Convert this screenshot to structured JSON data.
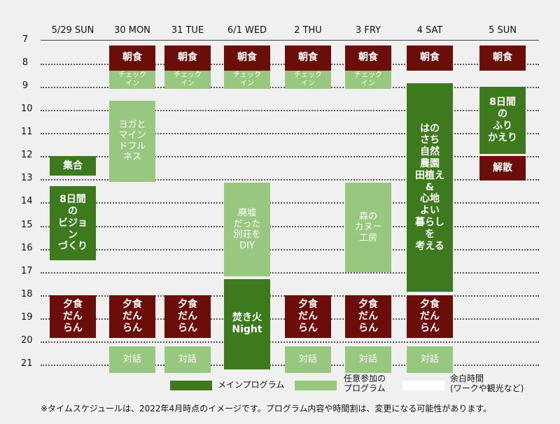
{
  "days": [
    "5/29 SUN",
    "30 MON",
    "31 TUE",
    "6/1 WED",
    "2 THU",
    "3 FRY",
    "4 SAT",
    "5 SUN"
  ],
  "hours": [
    "7",
    "8",
    "9",
    "10",
    "11",
    "12",
    "13",
    "14",
    "15",
    "16",
    "17",
    "18",
    "19",
    "20",
    "21"
  ],
  "events": [
    {
      "day": 0,
      "start": 12.0,
      "end": 12.85,
      "type": "main",
      "text": "集合"
    },
    {
      "day": 0,
      "start": 13.3,
      "end": 16.5,
      "type": "main",
      "text": "8日間\nの\nビジョ\nン\nづくり"
    },
    {
      "day": 0,
      "start": 18.0,
      "end": 19.85,
      "type": "meal",
      "text": "夕食\nだん\nらん"
    },
    {
      "day": 1,
      "start": 7.2,
      "end": 8.3,
      "type": "meal",
      "text": "朝食"
    },
    {
      "day": 1,
      "start": 8.3,
      "end": 9.1,
      "type": "optional",
      "text": "チェック\nイン"
    },
    {
      "day": 1,
      "start": 9.6,
      "end": 13.1,
      "type": "optional",
      "text": "ヨガと\nマイン\nドフル\nネス"
    },
    {
      "day": 1,
      "start": 18.0,
      "end": 19.85,
      "type": "meal",
      "text": "夕食\nだん\nらん"
    },
    {
      "day": 1,
      "start": 20.2,
      "end": 21.35,
      "type": "optional",
      "text": "対話"
    },
    {
      "day": 2,
      "start": 7.2,
      "end": 8.3,
      "type": "meal",
      "text": "朝食"
    },
    {
      "day": 2,
      "start": 8.3,
      "end": 9.1,
      "type": "optional",
      "text": "チェック\nイン"
    },
    {
      "day": 2,
      "start": 18.0,
      "end": 19.85,
      "type": "meal",
      "text": "夕食\nだん\nらん"
    },
    {
      "day": 2,
      "start": 20.2,
      "end": 21.35,
      "type": "optional",
      "text": "対話"
    },
    {
      "day": 3,
      "start": 7.2,
      "end": 8.3,
      "type": "meal",
      "text": "朝食"
    },
    {
      "day": 3,
      "start": 8.3,
      "end": 9.1,
      "type": "optional",
      "text": "チェック\nイン"
    },
    {
      "day": 3,
      "start": 13.15,
      "end": 17.2,
      "type": "optional",
      "text": "廃墟\nだった\n別荘を\nDIY"
    },
    {
      "day": 3,
      "start": 17.3,
      "end": 21.2,
      "type": "main",
      "text": "焚き火\nNight"
    },
    {
      "day": 4,
      "start": 7.2,
      "end": 8.3,
      "type": "meal",
      "text": "朝食"
    },
    {
      "day": 4,
      "start": 8.3,
      "end": 9.1,
      "type": "optional",
      "text": "チェック\nイン"
    },
    {
      "day": 4,
      "start": 18.0,
      "end": 19.85,
      "type": "meal",
      "text": "夕食\nだん\nらん"
    },
    {
      "day": 4,
      "start": 20.2,
      "end": 21.35,
      "type": "optional",
      "text": "対話"
    },
    {
      "day": 5,
      "start": 7.2,
      "end": 8.3,
      "type": "meal",
      "text": "朝食"
    },
    {
      "day": 5,
      "start": 8.3,
      "end": 9.1,
      "type": "optional",
      "text": "チェック\nイン"
    },
    {
      "day": 5,
      "start": 13.15,
      "end": 17.0,
      "type": "optional",
      "text": "森の\nカヌー\n工房"
    },
    {
      "day": 5,
      "start": 18.0,
      "end": 19.85,
      "type": "meal",
      "text": "夕食\nだん\nらん"
    },
    {
      "day": 5,
      "start": 20.2,
      "end": 21.35,
      "type": "optional",
      "text": "対話"
    },
    {
      "day": 6,
      "start": 7.2,
      "end": 8.3,
      "type": "meal",
      "text": "朝食"
    },
    {
      "day": 6,
      "start": 8.85,
      "end": 17.85,
      "type": "main",
      "text": "はの\nさち\n自然\n農園\n田植え\n&\n心地\nよい\n暮らし\nを\n考える"
    },
    {
      "day": 6,
      "start": 18.0,
      "end": 19.85,
      "type": "meal",
      "text": "夕食\nだん\nらん"
    },
    {
      "day": 6,
      "start": 20.2,
      "end": 21.35,
      "type": "optional",
      "text": "対話"
    },
    {
      "day": 7,
      "start": 7.2,
      "end": 8.3,
      "type": "meal",
      "text": "朝食"
    },
    {
      "day": 7,
      "start": 9.0,
      "end": 11.9,
      "type": "main",
      "text": "8日間\nの\nふり\nかえり"
    },
    {
      "day": 7,
      "start": 12.0,
      "end": 13.05,
      "type": "meal",
      "text": "解散"
    }
  ],
  "legend": [
    {
      "type": "main",
      "label": "メインプログラム"
    },
    {
      "type": "optional",
      "label": "任意参加の\nプログラム"
    },
    {
      "type": "free",
      "label": "余白時間\n(ワークや観光など)"
    }
  ],
  "note": "※タイムスケジュールは、2022年4月時点のイメージです。プログラム内容や時間割は、変更になる可能性があります。",
  "colors": {
    "meal": "#6b0e0a",
    "main": "#3d7a1d",
    "optional": "#98c87f",
    "free": "#ffffff"
  }
}
